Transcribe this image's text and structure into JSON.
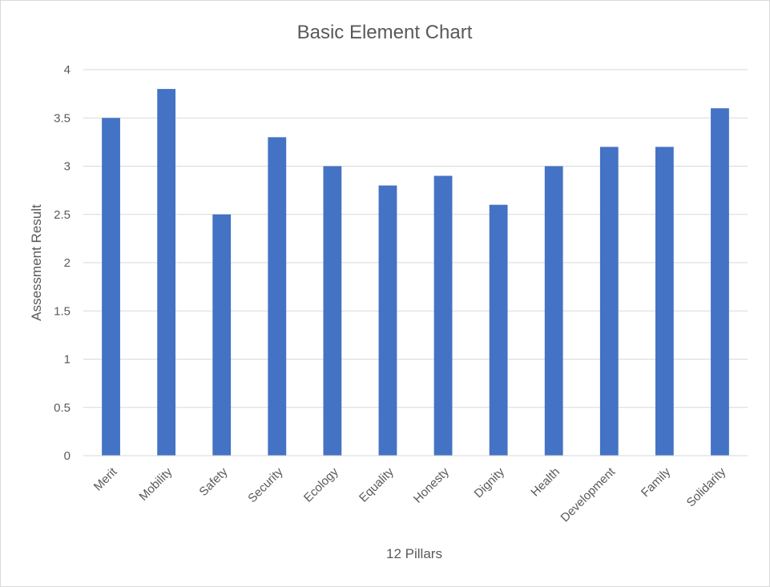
{
  "chart_data": {
    "type": "bar",
    "title": "Basic Element Chart",
    "xlabel": "12 Pillars",
    "ylabel": "Assessment Result",
    "categories": [
      "Merit",
      "Mobility",
      "Safety",
      "Security",
      "Ecology",
      "Equality",
      "Honesty",
      "Dignity",
      "Health",
      "Development",
      "Family",
      "Solidarity"
    ],
    "values": [
      3.5,
      3.8,
      2.5,
      3.3,
      3.0,
      2.8,
      2.9,
      2.6,
      3.0,
      3.2,
      3.2,
      3.6
    ],
    "ylim": [
      0,
      4
    ],
    "yticks": [
      "0",
      "0.5",
      "1",
      "1.5",
      "2",
      "2.5",
      "3",
      "3.5",
      "4"
    ],
    "grid": true,
    "legend": "none",
    "bar_color": "#4472C4"
  }
}
